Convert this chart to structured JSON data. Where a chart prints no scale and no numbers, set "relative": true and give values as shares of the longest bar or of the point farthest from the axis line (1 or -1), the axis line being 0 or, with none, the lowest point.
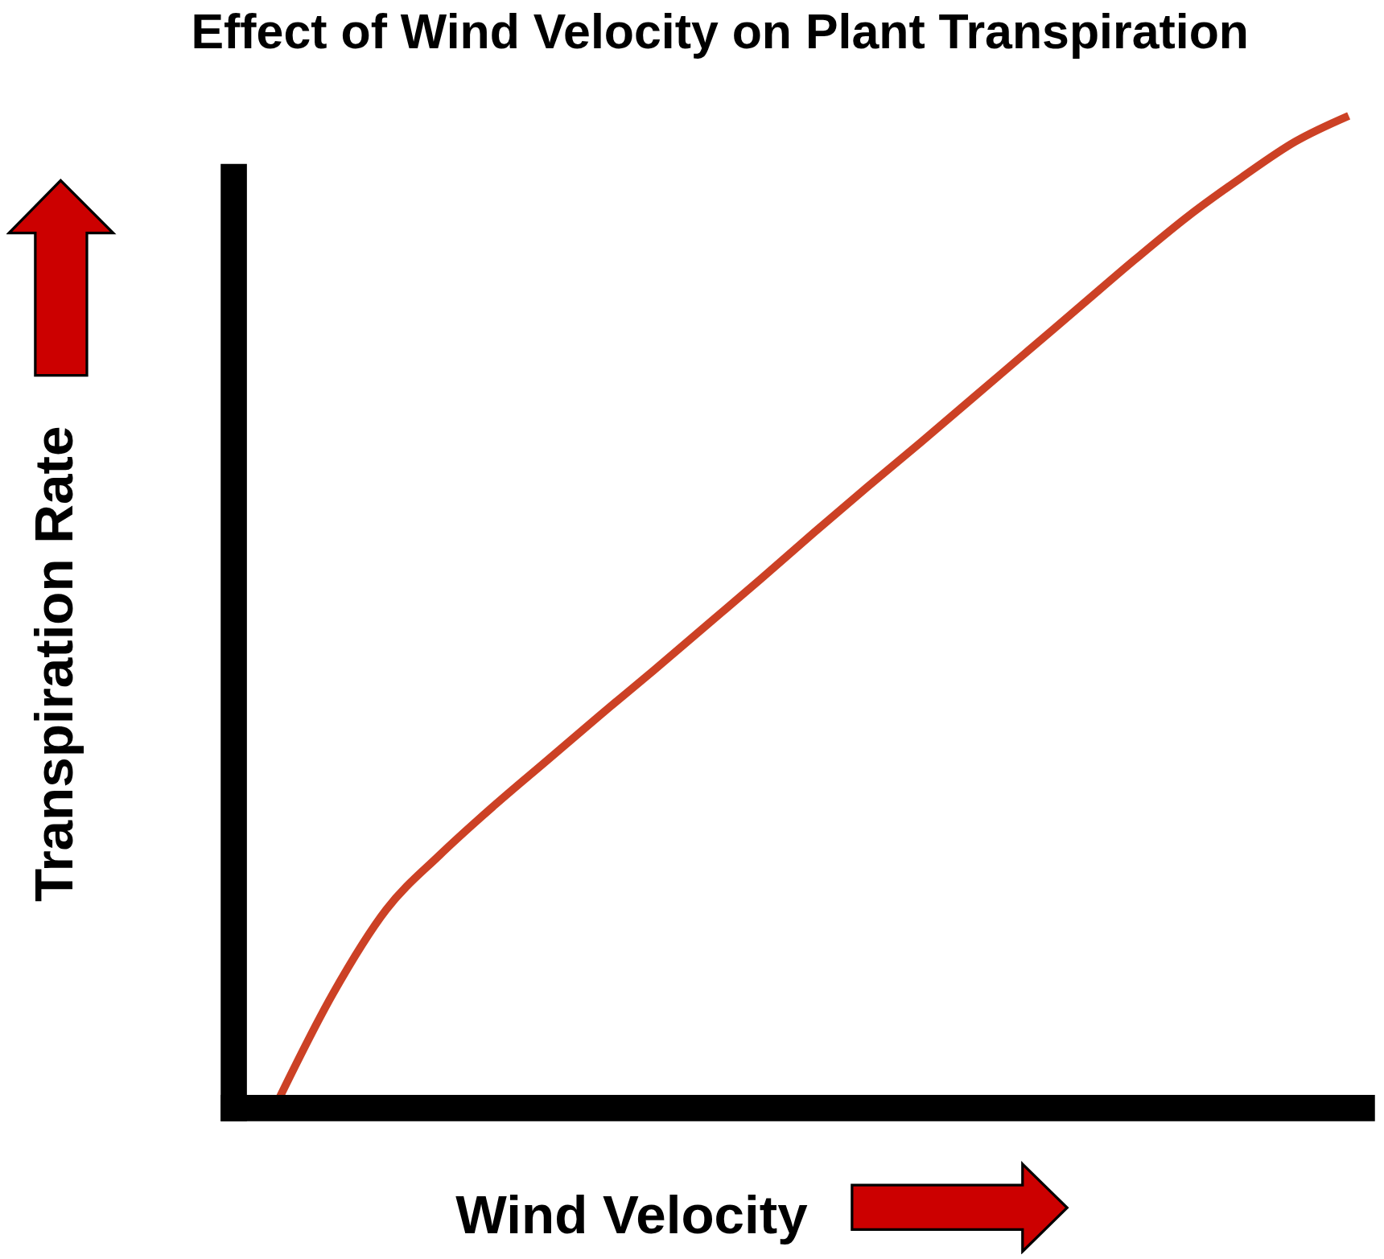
{
  "chart_data": {
    "type": "line",
    "title": "Effect of Wind Velocity on Plant Transpiration",
    "xlabel": "Wind Velocity",
    "ylabel": "Transpiration Rate",
    "relative": true,
    "line_style": "solid",
    "categories": [
      null,
      null,
      null,
      null,
      null,
      null,
      null,
      null,
      null,
      null,
      null,
      null,
      null,
      null,
      null,
      null,
      null,
      null,
      null,
      null,
      null
    ],
    "series": [
      {
        "color": "#cc4125",
        "values": [
          0.01,
          0.115,
          0.2,
          0.255,
          0.304,
          0.35,
          0.396,
          0.441,
          0.487,
          0.533,
          0.58,
          0.626,
          0.671,
          0.717,
          0.763,
          0.809,
          0.855,
          0.899,
          0.938,
          0.974,
          1
        ]
      }
    ]
  }
}
